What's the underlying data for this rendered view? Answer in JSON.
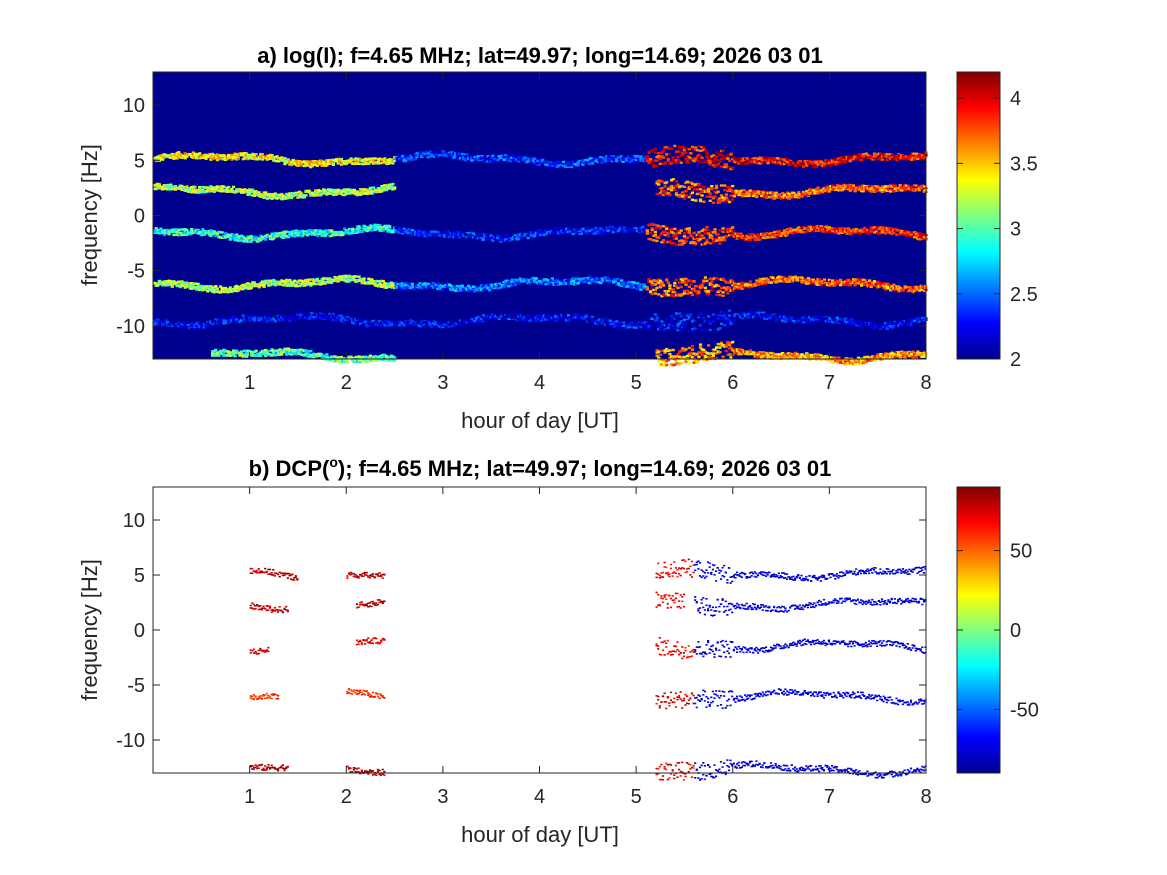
{
  "colors": {
    "background_a": "#00008f",
    "colormap": [
      "#00008f",
      "#0000ff",
      "#0080ff",
      "#00ffff",
      "#80ff80",
      "#ffff00",
      "#ff8000",
      "#ff0000",
      "#800000"
    ],
    "axis": "#262626"
  },
  "chart_data": [
    {
      "id": "a",
      "type": "heatmap",
      "title_main": "a) log(I); f=4.65 MHz;  lat=49.97; long=14.69; 2026 03 01",
      "title_sup": "",
      "title_rest": "",
      "xlabel": "hour of day [UT]",
      "ylabel": "frequency [Hz]",
      "xlim": [
        0,
        8
      ],
      "ylim": [
        -13,
        13
      ],
      "xticks": [
        "1",
        "2",
        "3",
        "4",
        "5",
        "6",
        "7",
        "8"
      ],
      "yticks": [
        "10",
        "5",
        "0",
        "-5",
        "-10"
      ],
      "colorbar": {
        "min": 2,
        "max": 4.2,
        "ticks": [
          "4",
          "3.5",
          "3",
          "2.5",
          "2"
        ],
        "tick_values": [
          4,
          3.5,
          3,
          2.5,
          2
        ]
      },
      "background": "dark-blue",
      "bands": [
        {
          "base_freq": 5.2,
          "segments": [
            [
              0,
              2.5,
              3.4
            ],
            [
              2.5,
              5.1,
              2.4
            ],
            [
              5.1,
              8,
              3.9
            ]
          ]
        },
        {
          "base_freq": 2.3,
          "segments": [
            [
              0,
              2.5,
              3.2
            ],
            [
              5.2,
              8,
              3.7
            ]
          ]
        },
        {
          "base_freq": -1.5,
          "segments": [
            [
              0,
              2.5,
              2.9
            ],
            [
              2.5,
              5.1,
              2.3
            ],
            [
              5.1,
              8,
              3.8
            ]
          ]
        },
        {
          "base_freq": -6.1,
          "segments": [
            [
              0,
              2.5,
              3.2
            ],
            [
              2.5,
              5.1,
              2.5
            ],
            [
              5.1,
              8,
              3.7
            ]
          ]
        },
        {
          "base_freq": -9.4,
          "segments": [
            [
              0,
              8,
              2.25
            ]
          ]
        },
        {
          "base_freq": -12.6,
          "segments": [
            [
              0.6,
              2.5,
              3.0
            ],
            [
              5.2,
              8,
              3.6
            ]
          ]
        }
      ]
    },
    {
      "id": "b",
      "type": "heatmap",
      "title_main": "b) DCP(",
      "title_sup": "o",
      "title_rest": "); f=4.65 MHz;  lat=49.97; long=14.69; 2026 03 01",
      "xlabel": "hour of day [UT]",
      "ylabel": "frequency [Hz]",
      "xlim": [
        0,
        8
      ],
      "ylim": [
        -13,
        13
      ],
      "xticks": [
        "1",
        "2",
        "3",
        "4",
        "5",
        "6",
        "7",
        "8"
      ],
      "yticks": [
        "10",
        "5",
        "0",
        "-5",
        "-10"
      ],
      "colorbar": {
        "min": -90,
        "max": 90,
        "ticks": [
          "50",
          "0",
          "-50"
        ],
        "tick_values": [
          50,
          0,
          -50
        ]
      },
      "background": "white",
      "bands": [
        {
          "base_freq": 5.2,
          "segments": [
            [
              1.0,
              1.5,
              80
            ],
            [
              2.0,
              2.4,
              80
            ],
            [
              5.2,
              5.6,
              70
            ],
            [
              5.6,
              8,
              -75
            ]
          ]
        },
        {
          "base_freq": 2.4,
          "segments": [
            [
              1.0,
              1.4,
              80
            ],
            [
              2.1,
              2.4,
              80
            ],
            [
              5.2,
              5.5,
              70
            ],
            [
              5.6,
              8,
              -75
            ]
          ]
        },
        {
          "base_freq": -1.4,
          "segments": [
            [
              1.0,
              1.2,
              70
            ],
            [
              2.1,
              2.4,
              70
            ],
            [
              5.2,
              5.6,
              70
            ],
            [
              5.6,
              8,
              -75
            ]
          ]
        },
        {
          "base_freq": -6.0,
          "segments": [
            [
              1.0,
              1.3,
              60
            ],
            [
              2.0,
              2.4,
              60
            ],
            [
              5.2,
              5.6,
              75
            ],
            [
              5.6,
              8,
              -75
            ]
          ]
        },
        {
          "base_freq": -12.6,
          "segments": [
            [
              1.0,
              1.4,
              80
            ],
            [
              2.0,
              2.4,
              80
            ],
            [
              5.2,
              5.6,
              70
            ],
            [
              5.6,
              8,
              -75
            ]
          ]
        }
      ]
    }
  ]
}
